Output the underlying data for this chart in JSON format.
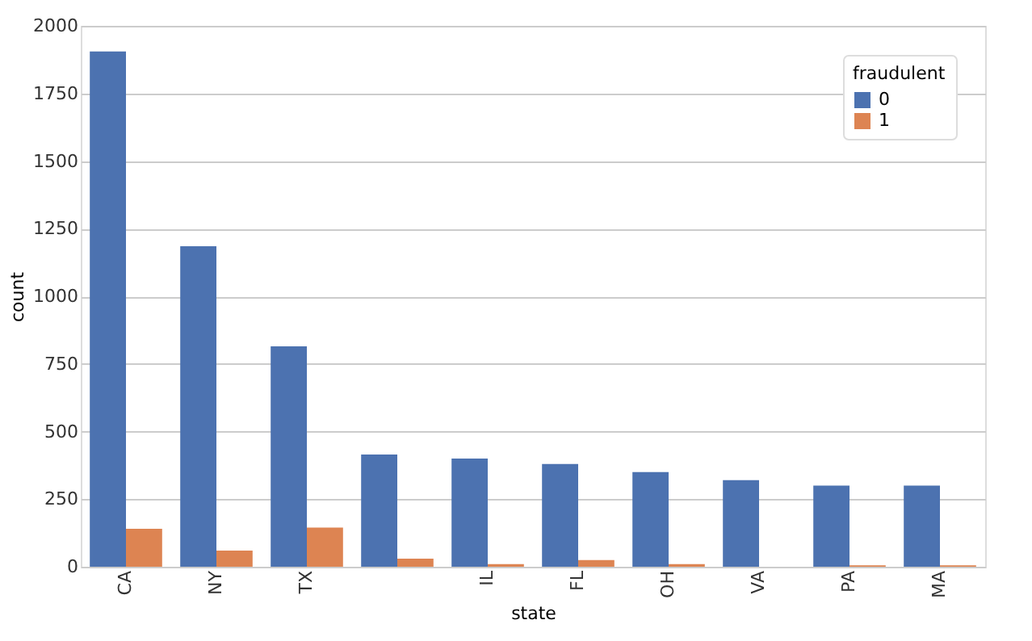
{
  "chart_data": {
    "type": "bar",
    "xlabel": "state",
    "ylabel": "count",
    "legend_title": "fraudulent",
    "categories": [
      "CA",
      "NY",
      "TX",
      null,
      "IL",
      "FL",
      "OH",
      "VA",
      "PA",
      "MA"
    ],
    "series": [
      {
        "name": "0",
        "color": "#4c72b0",
        "values": [
          1905,
          1185,
          815,
          415,
          400,
          380,
          350,
          320,
          300,
          300
        ]
      },
      {
        "name": "1",
        "color": "#dd8452",
        "values": [
          140,
          60,
          145,
          30,
          10,
          25,
          10,
          null,
          5,
          5
        ]
      }
    ],
    "ylim": [
      0,
      2000
    ],
    "yticks": [
      0,
      250,
      500,
      750,
      1000,
      1250,
      1500,
      1750,
      2000
    ],
    "grid": "y",
    "legend": "top right"
  }
}
